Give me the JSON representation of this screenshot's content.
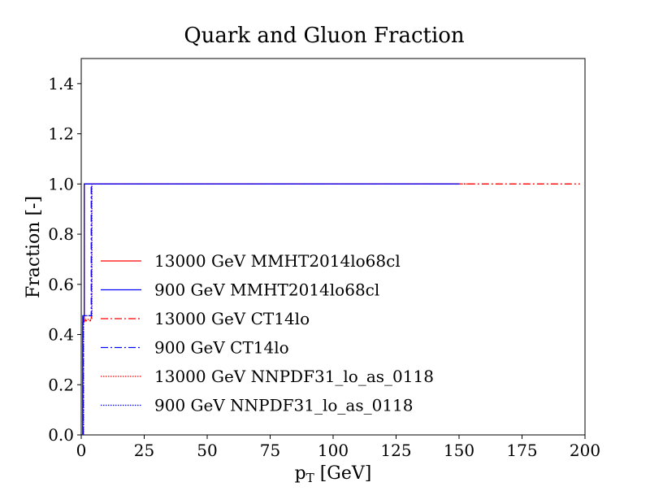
{
  "chart_data": {
    "type": "line",
    "title": "Quark and Gluon Fraction",
    "xlabel": "p$_{T}$ [GeV]",
    "xlabel_main": "p",
    "xlabel_sub": "T",
    "xlabel_unit": " [GeV]",
    "ylabel": "Fraction [-]",
    "xlim": [
      0,
      200
    ],
    "ylim": [
      0,
      1.5
    ],
    "xticks": [
      0,
      25,
      50,
      75,
      100,
      125,
      150,
      175,
      200
    ],
    "xtick_labels": [
      "0",
      "25",
      "50",
      "75",
      "100",
      "125",
      "150",
      "175",
      "200"
    ],
    "yticks": [
      0.0,
      0.2,
      0.4,
      0.6,
      0.8,
      1.0,
      1.2,
      1.4
    ],
    "ytick_labels": [
      "0.0",
      "0.2",
      "0.4",
      "0.6",
      "0.8",
      "1.0",
      "1.2",
      "1.4"
    ],
    "legend_position": "center-left",
    "series": [
      {
        "name": "13000 GeV MMHT2014lo68cl",
        "color": "#ff0000",
        "dash": "solid",
        "x": [
          0.6,
          0.6,
          1.2,
          1.2,
          3.8,
          3.8,
          148
        ],
        "y": [
          0.0,
          0.45,
          0.45,
          1.0,
          1.0,
          1.0,
          1.0
        ]
      },
      {
        "name": "900 GeV MMHT2014lo68cl",
        "color": "#0000ff",
        "dash": "solid",
        "x": [
          0.6,
          0.6,
          1.2,
          1.2,
          3.8,
          3.8,
          148
        ],
        "y": [
          0.0,
          0.475,
          0.475,
          1.0,
          1.0,
          1.0,
          1.0
        ]
      },
      {
        "name": "13000 GeV CT14lo",
        "color": "#ff0000",
        "dash": "dashdot",
        "x": [
          0.8,
          0.8,
          4.0,
          4.0,
          198
        ],
        "y": [
          0.0,
          0.455,
          0.455,
          1.0,
          1.0
        ]
      },
      {
        "name": "900 GeV CT14lo",
        "color": "#0000ff",
        "dash": "dashdot",
        "x": [
          0.8,
          0.8,
          4.0,
          4.0,
          150
        ],
        "y": [
          0.0,
          0.475,
          0.475,
          1.0,
          1.0
        ]
      },
      {
        "name": "13000 GeV NNPDF31_lo_as_0118",
        "color": "#ff0000",
        "dash": "dotted",
        "x": [
          0.9,
          0.9,
          4.2,
          4.2,
          155
        ],
        "y": [
          0.0,
          0.46,
          0.46,
          1.0,
          1.0
        ]
      },
      {
        "name": "900 GeV NNPDF31_lo_as_0118",
        "color": "#0000ff",
        "dash": "dotted",
        "x": [
          0.9,
          0.9,
          4.2,
          4.2,
          150
        ],
        "y": [
          0.0,
          0.475,
          0.475,
          1.0,
          1.0
        ]
      }
    ]
  }
}
